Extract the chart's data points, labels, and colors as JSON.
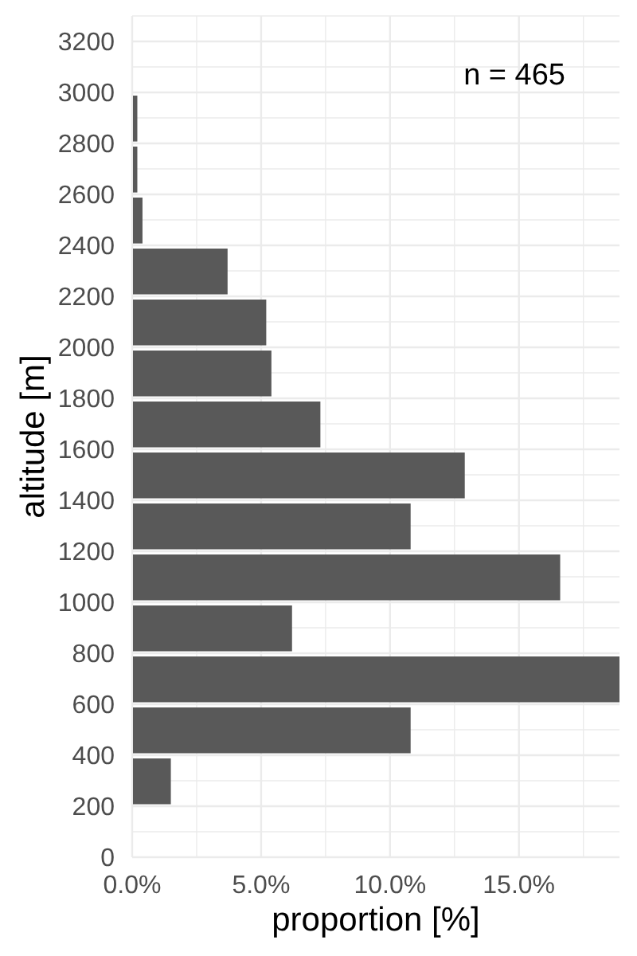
{
  "chart_data": {
    "type": "histogram",
    "orientation": "horizontal",
    "bins": [
      200,
      400,
      600,
      800,
      1000,
      1200,
      1400,
      1600,
      1800,
      2000,
      2200,
      2400,
      2600,
      2800,
      3000
    ],
    "values": [
      1.5,
      10.8,
      18.9,
      6.2,
      16.6,
      10.8,
      12.9,
      7.3,
      5.4,
      5.2,
      3.7,
      0.4,
      0.2,
      0.2
    ],
    "color": "#595959",
    "xlabel": "proportion [%]",
    "ylabel": "altitude [m]",
    "xlim": [
      0,
      18.9
    ],
    "xticks": [
      {
        "value": 0,
        "label": "0.0%"
      },
      {
        "value": 5,
        "label": "5.0%"
      },
      {
        "value": 10,
        "label": "10.0%"
      },
      {
        "value": 15,
        "label": "15.0%"
      }
    ],
    "ylim": [
      0,
      3300
    ],
    "yticks": [
      0,
      200,
      400,
      600,
      800,
      1000,
      1200,
      1400,
      1600,
      1800,
      2000,
      2200,
      2400,
      2600,
      2800,
      3000,
      3200
    ],
    "grid": true,
    "annotations": [
      "n = 465"
    ]
  }
}
